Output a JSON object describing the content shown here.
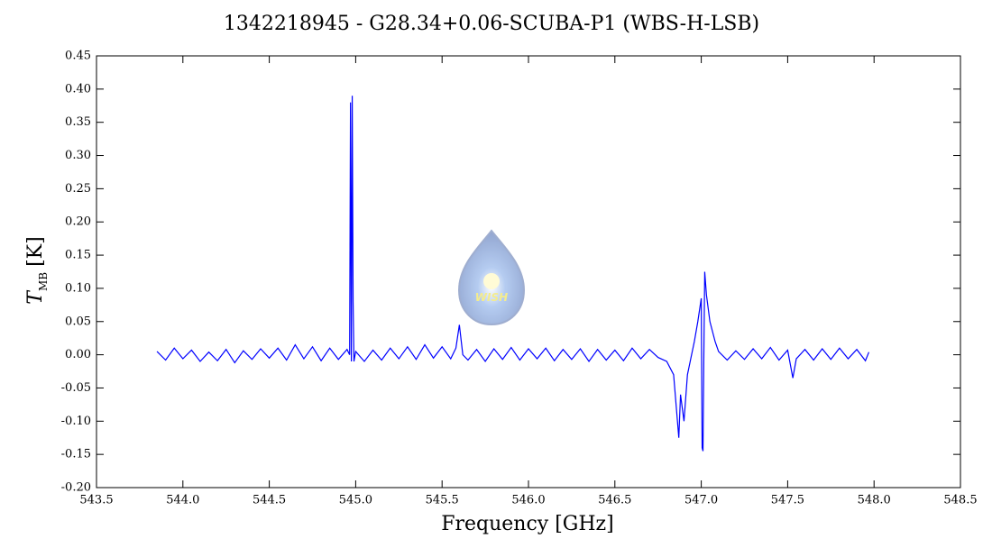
{
  "chart_data": {
    "type": "line",
    "title": "1342218945 - G28.34+0.06-SCUBA-P1 (WBS-H-LSB)",
    "x_label": "Frequency [GHz]",
    "y_label": {
      "main": "T",
      "sub": "MB",
      "unit": "[K]"
    },
    "watermark": "WISH",
    "color": "#0000ff",
    "xlim": [
      543.5,
      548.5
    ],
    "ylim": [
      -0.2,
      0.45
    ],
    "xticks": [
      543.5,
      {
        "value": 544,
        "label": "544.0"
      },
      544.5,
      {
        "value": 545,
        "label": "545.0"
      },
      545.5,
      {
        "value": 546,
        "label": "546.0"
      },
      546.5,
      {
        "value": 547,
        "label": "547.0"
      },
      547.5,
      {
        "value": 548,
        "label": "548.0"
      },
      548.5
    ],
    "yticks": [
      {
        "value": -0.2,
        "label": "-0.20"
      },
      -0.15,
      {
        "value": -0.1,
        "label": "-0.10"
      },
      -0.05,
      {
        "value": 0,
        "label": "0.00"
      },
      0.05,
      {
        "value": 0.1,
        "label": "0.10"
      },
      0.15,
      {
        "value": 0.2,
        "label": "0.20"
      },
      0.25,
      {
        "value": 0.3,
        "label": "0.30"
      },
      0.35,
      {
        "value": 0.4,
        "label": "0.40"
      },
      0.45
    ],
    "x": [
      543.85,
      543.9,
      543.95,
      544.0,
      544.05,
      544.1,
      544.15,
      544.2,
      544.25,
      544.3,
      544.35,
      544.4,
      544.45,
      544.5,
      544.55,
      544.6,
      544.65,
      544.7,
      544.75,
      544.8,
      544.85,
      544.9,
      544.95,
      544.965,
      544.97,
      544.975,
      544.98,
      544.985,
      544.99,
      545.0,
      545.05,
      545.1,
      545.15,
      545.2,
      545.25,
      545.3,
      545.35,
      545.4,
      545.45,
      545.5,
      545.55,
      545.58,
      545.6,
      545.62,
      545.65,
      545.7,
      545.75,
      545.8,
      545.85,
      545.9,
      545.95,
      546.0,
      546.05,
      546.1,
      546.15,
      546.2,
      546.25,
      546.3,
      546.35,
      546.4,
      546.45,
      546.5,
      546.55,
      546.6,
      546.65,
      546.7,
      546.75,
      546.8,
      546.84,
      546.87,
      546.88,
      546.9,
      546.92,
      546.94,
      546.96,
      546.98,
      547.0,
      547.005,
      547.01,
      547.015,
      547.02,
      547.03,
      547.05,
      547.08,
      547.1,
      547.15,
      547.2,
      547.25,
      547.3,
      547.35,
      547.4,
      547.45,
      547.5,
      547.53,
      547.55,
      547.6,
      547.65,
      547.7,
      547.75,
      547.8,
      547.85,
      547.9,
      547.95,
      547.97
    ],
    "values": [
      0.005,
      -0.008,
      0.01,
      -0.006,
      0.007,
      -0.01,
      0.004,
      -0.009,
      0.008,
      -0.012,
      0.006,
      -0.007,
      0.009,
      -0.005,
      0.01,
      -0.008,
      0.015,
      -0.006,
      0.012,
      -0.009,
      0.01,
      -0.007,
      0.008,
      0.0,
      0.38,
      -0.01,
      0.39,
      0.08,
      -0.01,
      0.005,
      -0.01,
      0.007,
      -0.008,
      0.01,
      -0.006,
      0.012,
      -0.007,
      0.015,
      -0.005,
      0.012,
      -0.006,
      0.01,
      0.045,
      0.0,
      -0.008,
      0.008,
      -0.01,
      0.009,
      -0.007,
      0.011,
      -0.008,
      0.009,
      -0.006,
      0.01,
      -0.009,
      0.008,
      -0.007,
      0.009,
      -0.01,
      0.008,
      -0.008,
      0.007,
      -0.009,
      0.01,
      -0.006,
      0.008,
      -0.004,
      -0.01,
      -0.03,
      -0.125,
      -0.06,
      -0.1,
      -0.03,
      -0.005,
      0.02,
      0.05,
      0.085,
      -0.14,
      -0.145,
      0.0,
      0.125,
      0.09,
      0.05,
      0.02,
      0.005,
      -0.008,
      0.006,
      -0.007,
      0.009,
      -0.006,
      0.011,
      -0.008,
      0.007,
      -0.035,
      -0.006,
      0.008,
      -0.008,
      0.009,
      -0.007,
      0.01,
      -0.006,
      0.008,
      -0.009,
      0.004
    ]
  }
}
